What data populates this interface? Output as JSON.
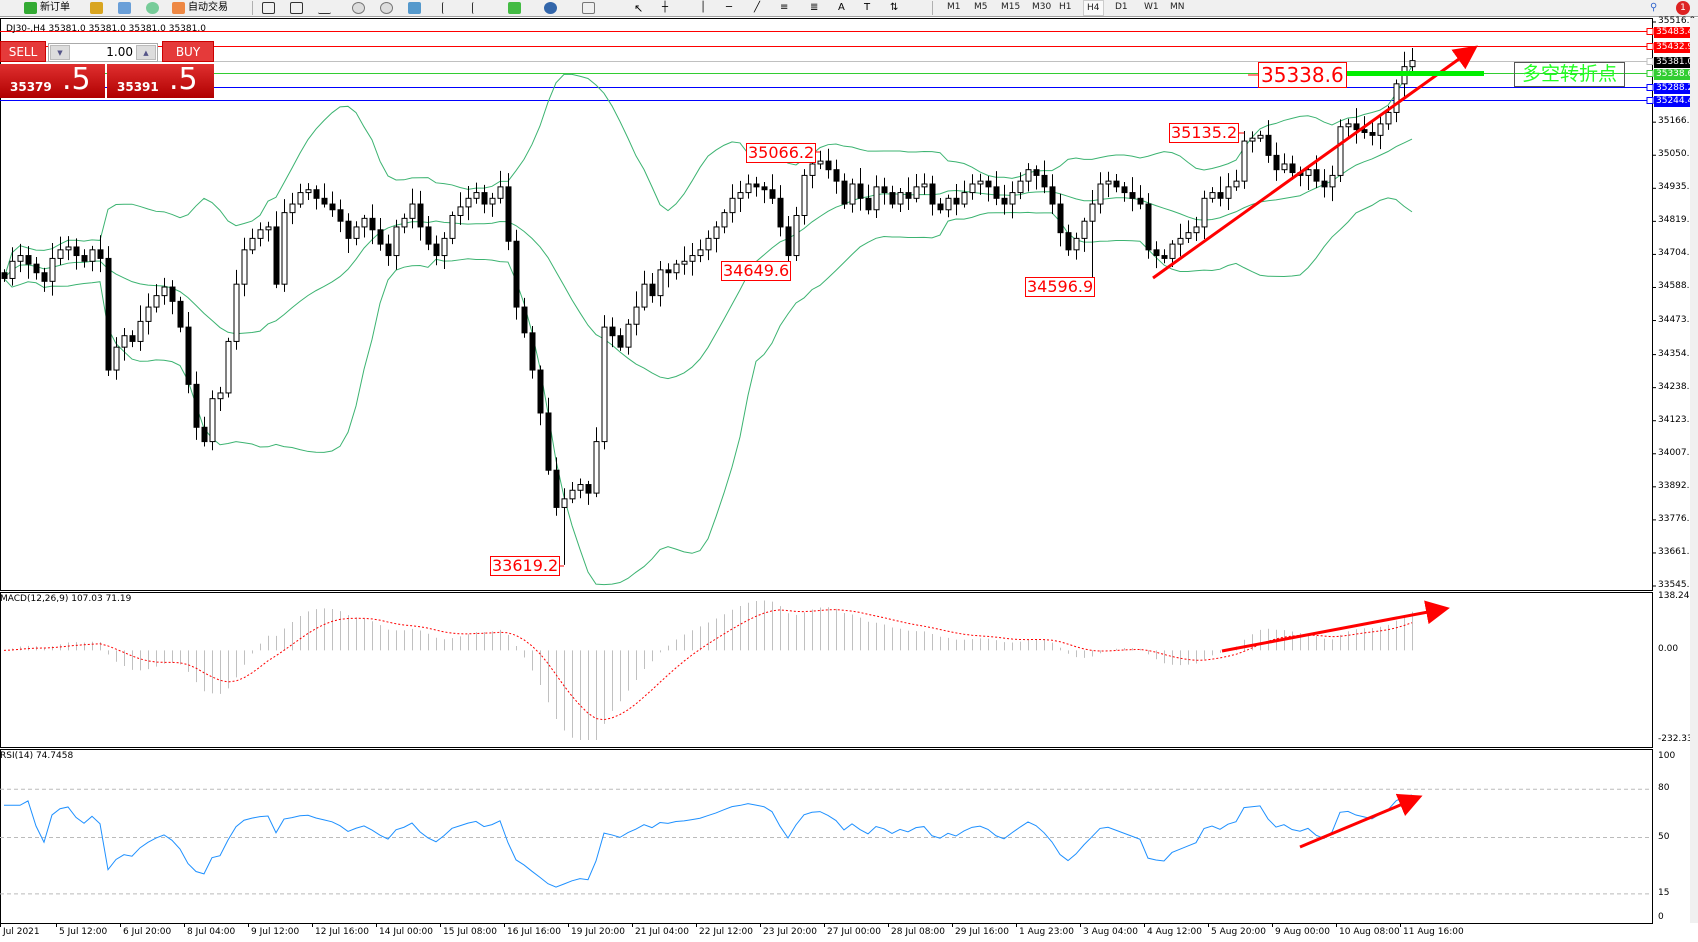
{
  "toolbar": {
    "new_order": "新订单",
    "auto_trading": "自动交易",
    "timeframes": [
      "M1",
      "M5",
      "M15",
      "M30",
      "H1",
      "H4",
      "D1",
      "W1",
      "MN"
    ],
    "active_timeframe": "H4",
    "notification_count": "1"
  },
  "chart_header": "DJ30-,H4  35381.0 35381.0 35381.0 35381.0",
  "trade_panel": {
    "sell_label": "SELL",
    "buy_label": "BUY",
    "lot_size": "1.00",
    "sell_price_main": "35379",
    "sell_price_big": ".5",
    "buy_price_main": "35391",
    "buy_price_big": ".5"
  },
  "price_axis": [
    "35516.0",
    "35166.0",
    "35050.5",
    "34935.0",
    "34819.5",
    "34704.0",
    "34588.5",
    "34473.0",
    "34354.0",
    "34238.5",
    "34123.0",
    "34007.5",
    "33892.0",
    "33776.5",
    "33661.0",
    "33545.5"
  ],
  "price_lines": [
    {
      "value": "35483.4",
      "color": "#ff0000"
    },
    {
      "value": "35432.9",
      "color": "#ff0000"
    },
    {
      "value": "35381.0",
      "color": "#c0c0c0",
      "label_bg": "#000000"
    },
    {
      "value": "35338.6",
      "color": "#32cd32"
    },
    {
      "value": "35288.2",
      "color": "#0000ff"
    },
    {
      "value": "35244.4",
      "color": "#0000ff"
    }
  ],
  "annotations": {
    "turning_point_price": "35338.6",
    "turning_point_text": "多空转折点",
    "extreme_labels": [
      "35066.2",
      "34649.6",
      "33619.2",
      "34596.9",
      "35135.2"
    ]
  },
  "macd": {
    "label": "MACD(12,26,9) 107.03 71.19",
    "axis": [
      "138.24",
      "0.00",
      "-232.33"
    ]
  },
  "rsi": {
    "label": "RSI(14) 74.7458",
    "axis": [
      "100",
      "80",
      "50",
      "15",
      "0"
    ]
  },
  "time_axis": [
    "Jul 2021",
    "5 Jul 12:00",
    "6 Jul 20:00",
    "8 Jul 04:00",
    "9 Jul 12:00",
    "12 Jul 16:00",
    "14 Jul 00:00",
    "15 Jul 08:00",
    "16 Jul 16:00",
    "19 Jul 20:00",
    "21 Jul 04:00",
    "22 Jul 12:00",
    "23 Jul 20:00",
    "27 Jul 00:00",
    "28 Jul 08:00",
    "29 Jul 16:00",
    "1 Aug 23:00",
    "3 Aug 04:00",
    "4 Aug 12:00",
    "5 Aug 20:00",
    "9 Aug 00:00",
    "10 Aug 08:00",
    "11 Aug 16:00"
  ],
  "chart_data": {
    "type": "candlestick",
    "symbol": "DJ30-",
    "timeframe": "H4",
    "ylim": [
      33545.5,
      35516.0
    ],
    "closes": [
      34620,
      34680,
      34700,
      34670,
      34640,
      34610,
      34690,
      34720,
      34730,
      34700,
      34680,
      34720,
      34690,
      34300,
      34380,
      34420,
      34400,
      34470,
      34520,
      34560,
      34590,
      34540,
      34450,
      34250,
      34100,
      34050,
      34200,
      34220,
      34400,
      34600,
      34720,
      34760,
      34790,
      34800,
      34600,
      34850,
      34880,
      34920,
      34930,
      34900,
      34880,
      34860,
      34820,
      34760,
      34800,
      34830,
      34790,
      34740,
      34700,
      34800,
      34830,
      34880,
      34800,
      34740,
      34700,
      34760,
      34840,
      34870,
      34900,
      34920,
      34880,
      34900,
      34940,
      34750,
      34520,
      34430,
      34300,
      34150,
      33950,
      33820,
      33850,
      33880,
      33900,
      33870,
      34050,
      34450,
      34420,
      34380,
      34460,
      34520,
      34600,
      34560,
      34650,
      34640,
      34670,
      34680,
      34700,
      34720,
      34760,
      34800,
      34850,
      34900,
      34920,
      34950,
      34940,
      34930,
      34900,
      34800,
      34700,
      34840,
      34980,
      35020,
      35030,
      35000,
      34960,
      34880,
      34950,
      34900,
      34860,
      34940,
      34920,
      34880,
      34920,
      34900,
      34940,
      34950,
      34880,
      34860,
      34900,
      34880,
      34920,
      34950,
      34960,
      34940,
      34900,
      34880,
      34920,
      34960,
      35000,
      34980,
      34940,
      34880,
      34780,
      34720,
      34760,
      34820,
      34880,
      34950,
      34960,
      34940,
      34920,
      34900,
      34880,
      34720,
      34700,
      34690,
      34740,
      34760,
      34780,
      34800,
      34900,
      34920,
      34900,
      34940,
      34960,
      35100,
      35110,
      35120,
      35050,
      35000,
      35020,
      34990,
      34980,
      35000,
      34960,
      34940,
      34980,
      35150,
      35160,
      35140,
      35130,
      35120,
      35160,
      35200,
      35300,
      35360,
      35381
    ],
    "extremes": [
      {
        "bar": 102,
        "type": "high",
        "value": 35066.2
      },
      {
        "bar": 98,
        "type": "low",
        "value": 34649.6
      },
      {
        "bar": 70,
        "type": "low",
        "value": 33619.2
      },
      {
        "bar": 136,
        "type": "low",
        "value": 34596.9
      },
      {
        "bar": 155,
        "type": "high",
        "value": 35135.2
      }
    ],
    "indicators": [
      "Bollinger Bands(20,2)",
      "MACD(12,26,9)",
      "RSI(14)"
    ],
    "rsi_levels": [
      80,
      50,
      15
    ],
    "macd_range": [
      -232.33,
      138.24
    ],
    "colors": {
      "bands": "#3cb371",
      "macd_signal": "#ff0000",
      "macd_hist": "#c0c0c0",
      "rsi": "#1e90ff",
      "arrow": "#ff0000"
    }
  }
}
